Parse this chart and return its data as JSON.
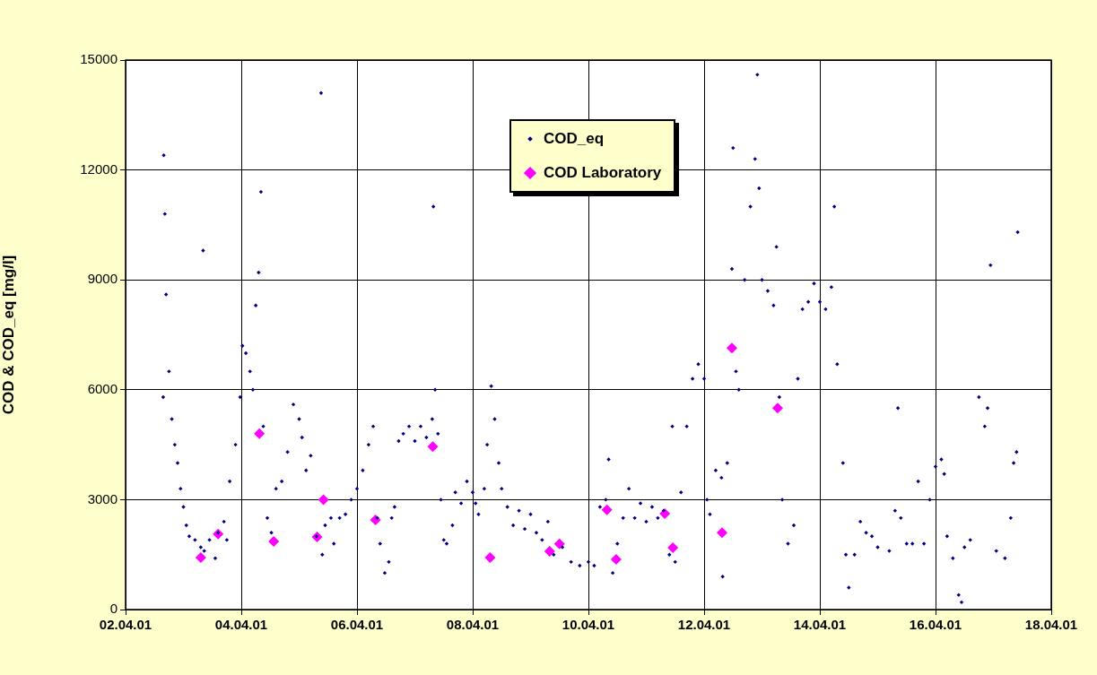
{
  "chart_data": {
    "type": "scatter",
    "ylabel": "COD & COD_eq [mg/l]",
    "xlim": [
      "--04-02",
      "--04-18"
    ],
    "xticks": [
      {
        "value": "--04-02",
        "label": "02.04.01"
      },
      {
        "value": "--04-04",
        "label": "04.04.01"
      },
      {
        "value": "--04-06",
        "label": "06.04.01"
      },
      {
        "value": "--04-08",
        "label": "08.04.01"
      },
      {
        "value": "--04-10",
        "label": "10.04.01"
      },
      {
        "value": "--04-12",
        "label": "12.04.01"
      },
      {
        "value": "--04-14",
        "label": "14.04.01"
      },
      {
        "value": "--04-16",
        "label": "16.04.01"
      },
      {
        "value": "--04-18",
        "label": "18.04.01"
      }
    ],
    "ylim": [
      0,
      15000
    ],
    "yticks": [
      0,
      3000,
      6000,
      9000,
      12000,
      15000
    ],
    "grid": true,
    "legend": "top",
    "marker": "diamond",
    "series": [
      {
        "name": "COD_eq",
        "color": "#000080",
        "x": [
          "--04-02T15:36",
          "--04-02T15:50",
          "--04-02T16:19",
          "--04-02T16:48",
          "--04-02T18:00",
          "--04-02T19:12",
          "--04-02T20:24",
          "--04-02T21:36",
          "--04-02T22:48",
          "--04-03T00:00",
          "--04-03T01:12",
          "--04-03T02:24",
          "--04-03T04:48",
          "--04-03T07:12",
          "--04-03T08:10",
          "--04-03T08:38",
          "--04-03T10:48",
          "--04-03T13:12",
          "--04-03T14:24",
          "--04-03T16:48",
          "--04-03T18:00",
          "--04-03T19:12",
          "--04-03T21:36",
          "--04-03T23:31",
          "--04-04T00:29",
          "--04-04T01:55",
          "--04-04T03:36",
          "--04-04T04:48",
          "--04-04T06:00",
          "--04-04T07:12",
          "--04-04T08:10",
          "--04-04T09:07",
          "--04-04T10:48",
          "--04-04T12:29",
          "--04-04T14:24",
          "--04-04T16:48",
          "--04-04T19:12",
          "--04-04T21:36",
          "--04-05T00:00",
          "--04-05T01:12",
          "--04-05T02:53",
          "--04-05T04:48",
          "--04-05T07:12",
          "--04-05T09:07",
          "--04-05T09:36",
          "--04-05T10:48",
          "--04-05T13:12",
          "--04-05T14:24",
          "--04-05T16:48",
          "--04-05T19:12",
          "--04-05T21:36",
          "--04-06T00:00",
          "--04-06T02:24",
          "--04-06T04:48",
          "--04-06T06:43",
          "--04-06T08:24",
          "--04-06T09:36",
          "--04-06T11:31",
          "--04-06T13:12",
          "--04-06T14:24",
          "--04-06T15:36",
          "--04-06T17:17",
          "--04-06T19:12",
          "--04-06T21:36",
          "--04-07T00:00",
          "--04-07T02:24",
          "--04-07T04:48",
          "--04-07T07:12",
          "--04-07T07:41",
          "--04-07T08:24",
          "--04-07T09:36",
          "--04-07T10:48",
          "--04-07T12:00",
          "--04-07T13:12",
          "--04-07T15:36",
          "--04-07T16:48",
          "--04-07T19:12",
          "--04-07T21:36",
          "--04-08T00:00",
          "--04-08T01:12",
          "--04-08T02:24",
          "--04-08T04:48",
          "--04-08T06:00",
          "--04-08T07:41",
          "--04-08T09:07",
          "--04-08T10:48",
          "--04-08T12:00",
          "--04-08T14:24",
          "--04-08T16:48",
          "--04-08T19:12",
          "--04-08T21:36",
          "--04-09T00:00",
          "--04-09T02:24",
          "--04-09T04:48",
          "--04-09T07:12",
          "--04-09T09:36",
          "--04-09T13:12",
          "--04-09T16:48",
          "--04-09T20:24",
          "--04-10T00:00",
          "--04-10T02:24",
          "--04-10T04:48",
          "--04-10T07:12",
          "--04-10T08:24",
          "--04-10T10:05",
          "--04-10T12:00",
          "--04-10T14:24",
          "--04-10T16:48",
          "--04-10T19:12",
          "--04-10T21:36",
          "--04-11T00:00",
          "--04-11T02:24",
          "--04-11T04:48",
          "--04-11T07:12",
          "--04-11T09:36",
          "--04-11T10:48",
          "--04-11T12:00",
          "--04-11T14:24",
          "--04-11T16:48",
          "--04-11T19:12",
          "--04-11T21:36",
          "--04-12T00:00",
          "--04-12T01:12",
          "--04-12T02:24",
          "--04-12T04:48",
          "--04-12T07:12",
          "--04-12T07:41",
          "--04-12T09:36",
          "--04-12T11:31",
          "--04-12T12:00",
          "--04-12T13:12",
          "--04-12T14:24",
          "--04-12T16:48",
          "--04-12T19:12",
          "--04-12T21:07",
          "--04-12T22:05",
          "--04-12T22:48",
          "--04-13T00:00",
          "--04-13T02:24",
          "--04-13T04:48",
          "--04-13T06:00",
          "--04-13T07:12",
          "--04-13T08:24",
          "--04-13T10:48",
          "--04-13T13:12",
          "--04-13T14:53",
          "--04-13T16:48",
          "--04-13T19:12",
          "--04-13T21:36",
          "--04-14T00:00",
          "--04-14T02:24",
          "--04-14T04:48",
          "--04-14T06:00",
          "--04-14T07:12",
          "--04-14T09:36",
          "--04-14T10:48",
          "--04-14T12:00",
          "--04-14T14:24",
          "--04-14T16:48",
          "--04-14T19:12",
          "--04-14T21:36",
          "--04-15T00:00",
          "--04-15T04:48",
          "--04-15T07:12",
          "--04-15T08:24",
          "--04-15T09:36",
          "--04-15T12:00",
          "--04-15T14:24",
          "--04-15T16:48",
          "--04-15T19:12",
          "--04-15T21:36",
          "--04-16T00:00",
          "--04-16T02:24",
          "--04-16T03:36",
          "--04-16T04:48",
          "--04-16T07:12",
          "--04-16T09:36",
          "--04-16T10:48",
          "--04-16T12:00",
          "--04-16T14:24",
          "--04-16T18:00",
          "--04-16T20:24",
          "--04-16T21:36",
          "--04-16T22:48",
          "--04-17T01:12",
          "--04-17T04:48",
          "--04-17T07:12",
          "--04-17T08:24",
          "--04-17T09:36",
          "--04-17T10:05"
        ],
        "values": [
          5800,
          12400,
          10800,
          8600,
          6500,
          5200,
          4500,
          4000,
          3300,
          2800,
          2300,
          2000,
          1900,
          1700,
          9800,
          1600,
          1900,
          1400,
          2100,
          2400,
          1900,
          3500,
          4500,
          5800,
          7200,
          7000,
          6500,
          6000,
          8300,
          9200,
          11400,
          5000,
          2500,
          2100,
          3300,
          3500,
          4300,
          5600,
          5200,
          4700,
          3800,
          4200,
          2000,
          14100,
          1500,
          2300,
          2500,
          1800,
          2500,
          2600,
          3000,
          3300,
          3800,
          4500,
          5000,
          2500,
          1800,
          1000,
          1300,
          2500,
          2800,
          4600,
          4800,
          5000,
          4600,
          5000,
          4700,
          5200,
          11000,
          6000,
          4800,
          3000,
          1900,
          1800,
          2300,
          3200,
          2900,
          3500,
          3200,
          2900,
          2600,
          3300,
          4500,
          6100,
          5200,
          4000,
          3300,
          2800,
          2300,
          2700,
          2200,
          2600,
          2100,
          1900,
          2400,
          1500,
          1700,
          1300,
          1200,
          1300,
          1200,
          2800,
          3000,
          4100,
          1000,
          1800,
          2500,
          3300,
          2500,
          2900,
          2400,
          2800,
          2500,
          2700,
          1500,
          5000,
          1300,
          3200,
          5000,
          6300,
          6700,
          6300,
          3000,
          2600,
          3800,
          3600,
          900,
          4000,
          9300,
          12600,
          6500,
          6000,
          9000,
          11000,
          12300,
          14600,
          11500,
          9000,
          8700,
          8300,
          9900,
          5800,
          3000,
          1800,
          2300,
          6300,
          8200,
          8400,
          8900,
          8400,
          8200,
          8800,
          11000,
          6700,
          4000,
          1500,
          600,
          1500,
          2400,
          2100,
          2000,
          1700,
          1600,
          2700,
          5500,
          2500,
          1800,
          1800,
          3500,
          1800,
          3000,
          3900,
          4100,
          3700,
          2000,
          1400,
          400,
          200,
          1700,
          1900,
          5800,
          5000,
          5500,
          9400,
          1600,
          1400,
          2500,
          4000,
          4300,
          10300
        ]
      },
      {
        "name": "COD Laboratory",
        "color": "#ff00ff",
        "x": [
          "--04-03T07:12",
          "--04-03T14:24",
          "--04-04T07:29",
          "--04-04T13:26",
          "--04-05T07:26",
          "--04-05T10:05",
          "--04-06T07:41",
          "--04-07T07:26",
          "--04-08T07:12",
          "--04-09T07:55",
          "--04-09T12:00",
          "--04-10T07:41",
          "--04-10T11:31",
          "--04-11T07:41",
          "--04-11T11:02",
          "--04-12T07:26",
          "--04-12T11:31",
          "--04-13T06:29"
        ],
        "values": [
          1420,
          2060,
          4800,
          1860,
          1980,
          3000,
          2450,
          4450,
          1420,
          1590,
          1790,
          2720,
          1370,
          2620,
          1690,
          2100,
          7140,
          5500
        ]
      }
    ]
  }
}
